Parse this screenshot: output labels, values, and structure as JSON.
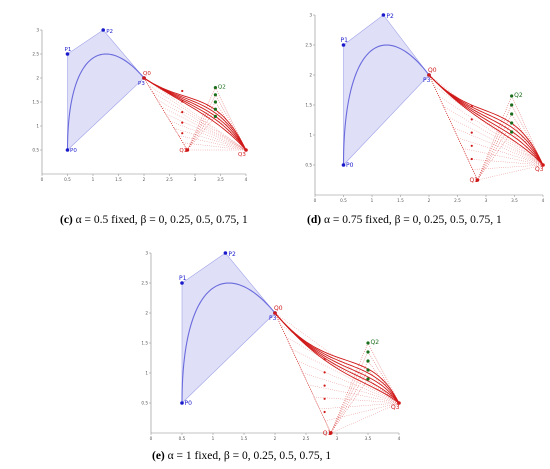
{
  "panels": [
    {
      "id": "c",
      "caption_letter": "(c)",
      "caption_text": "α = 0.5 fixed,    β = 0, 0.25, 0.5, 0.75, 1",
      "alpha": 0.5,
      "P": [
        [
          0.5,
          0.5
        ],
        [
          0.5,
          2.5
        ],
        [
          1.2,
          3.0
        ],
        [
          2.0,
          2.0
        ]
      ],
      "Q_base": [
        [
          2.0,
          2.0
        ],
        [
          2.85,
          0.5
        ],
        [
          3.4,
          1.8
        ],
        [
          4.0,
          0.5
        ]
      ],
      "Q_label_indices": [
        0,
        1,
        2,
        3
      ],
      "red_dots_x": 2.75,
      "green_dots_x": 3.4
    },
    {
      "id": "d",
      "caption_letter": "(d)",
      "caption_text": "α = 0.75 fixed,    β = 0, 0.25, 0.5, 0.75, 1",
      "alpha": 0.75,
      "P": [
        [
          0.5,
          0.5
        ],
        [
          0.5,
          2.5
        ],
        [
          1.2,
          3.0
        ],
        [
          2.0,
          2.0
        ]
      ],
      "Q_base": [
        [
          2.0,
          2.0
        ],
        [
          2.85,
          0.25
        ],
        [
          3.45,
          1.65
        ],
        [
          4.0,
          0.5
        ]
      ]
    },
    {
      "id": "e",
      "caption_letter": "(e)",
      "caption_text": "α = 1 fixed,    β = 0, 0.25, 0.5, 0.75, 1",
      "alpha": 1,
      "P": [
        [
          0.5,
          0.5
        ],
        [
          0.5,
          2.5
        ],
        [
          1.2,
          3.0
        ],
        [
          2.0,
          2.0
        ]
      ],
      "Q_base": [
        [
          2.0,
          2.0
        ],
        [
          2.9,
          0.0
        ],
        [
          3.5,
          1.5
        ],
        [
          4.0,
          0.5
        ]
      ]
    }
  ],
  "point_labels": {
    "P": [
      "P0",
      "P1",
      "P2",
      "P3"
    ],
    "Q": [
      "Q0",
      "Q1",
      "Q2",
      "Q3"
    ]
  },
  "axes": {
    "x_ticks": [
      "0",
      "0.5",
      "1",
      "1.5",
      "2",
      "2.5",
      "3",
      "3.5",
      "4"
    ],
    "x_tick_values": [
      0,
      0.5,
      1,
      1.5,
      2,
      2.5,
      3,
      3.5,
      4
    ],
    "y_ticks": [
      "0.5",
      "1",
      "1.5",
      "2",
      "2.5",
      "3"
    ],
    "y_tick_values": [
      0.5,
      1,
      1.5,
      2,
      2.5,
      3
    ],
    "x_range": [
      0,
      4
    ],
    "y_range": [
      0,
      3
    ]
  },
  "beta_values": [
    0,
    0.25,
    0.5,
    0.75,
    1
  ],
  "colors": {
    "blue": "#1a1acc",
    "blue_fill": "#dfe0f7",
    "curve_blue": "#6a6add",
    "red": "#d01818",
    "green": "#1a6d1a",
    "axis": "#888888"
  }
}
